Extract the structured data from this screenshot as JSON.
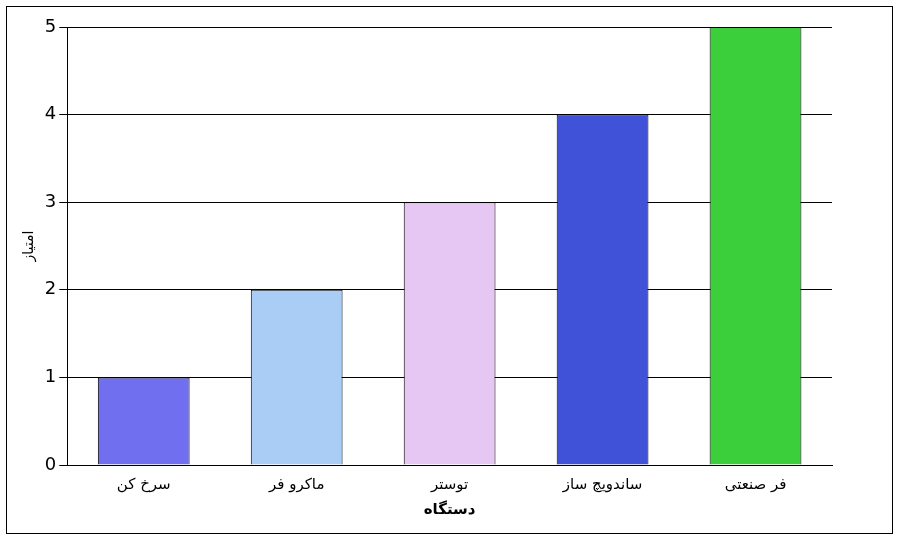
{
  "chart_data": {
    "type": "bar",
    "x_label": "دستگاه",
    "y_label": "امتیاز",
    "categories": [
      "سرخ کن",
      "ماکرو فر",
      "توستر",
      "ساندویچ ساز",
      "فر صنعتی"
    ],
    "values": [
      1,
      2,
      3,
      4,
      5
    ],
    "colors": [
      "#6f6ff0",
      "#a9cdf5",
      "#e6c6f2",
      "#3f52d8",
      "#3ccf3c"
    ],
    "ylim": [
      0,
      5
    ],
    "yticks": [
      0,
      1,
      2,
      3,
      4,
      5
    ],
    "grid": true
  }
}
